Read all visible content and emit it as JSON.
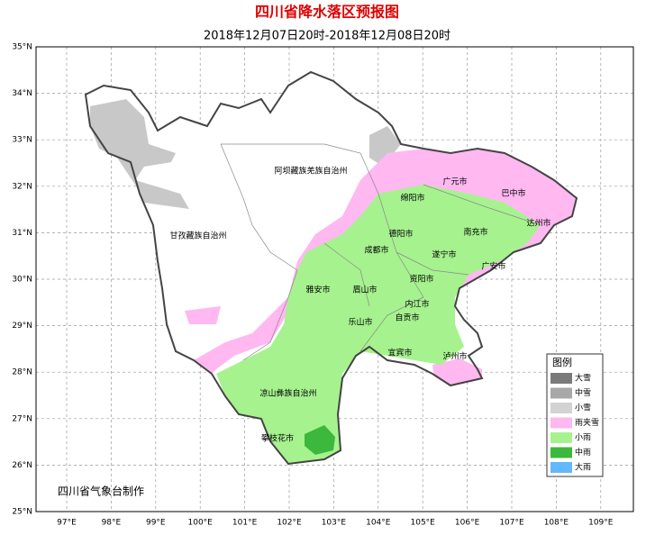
{
  "title": "四川省降水落区预报图",
  "subtitle": "2018年12月07日20时-2018年12月08日20时",
  "lat_ticks": [
    "35°N",
    "34°N",
    "33°N",
    "32°N",
    "31°N",
    "30°N",
    "29°N",
    "28°N",
    "27°N",
    "26°N",
    "25°N"
  ],
  "lon_ticks": [
    "97°E",
    "98°E",
    "99°E",
    "100°E",
    "101°E",
    "102°E",
    "103°E",
    "104°E",
    "105°E",
    "106°E",
    "107°E",
    "108°E",
    "109°E"
  ],
  "regions": [
    "阿坝藏族羌族自治州",
    "甘孜藏族自治州",
    "广元市",
    "巴中市",
    "绵阳市",
    "达州市",
    "德阳市",
    "南充市",
    "成都市",
    "遂宁市",
    "广安市",
    "资阳市",
    "雅安市",
    "眉山市",
    "内江市",
    "乐山市",
    "自贡市",
    "宜宾市",
    "泸州市",
    "凉山彝族自治州",
    "攀枝花市"
  ],
  "legend": {
    "title": "图例",
    "items": [
      {
        "label": "大雪",
        "color": "#7a7a7a"
      },
      {
        "label": "中雪",
        "color": "#a8a8a8"
      },
      {
        "label": "小雪",
        "color": "#d3d3d3"
      },
      {
        "label": "雨夹雪",
        "color": "#ffb8f0"
      },
      {
        "label": "小雨",
        "color": "#a6f28f"
      },
      {
        "label": "中雨",
        "color": "#3cb83c"
      },
      {
        "label": "大雨",
        "color": "#63b8ff"
      }
    ]
  },
  "credit": "四川省气象台制作"
}
